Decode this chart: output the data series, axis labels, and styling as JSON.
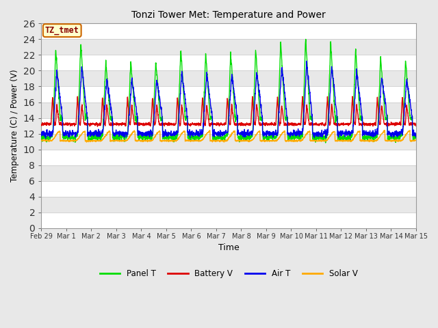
{
  "title": "Tonzi Tower Met: Temperature and Power",
  "xlabel": "Time",
  "ylabel": "Temperature (C) / Power (V)",
  "ylim": [
    0,
    26
  ],
  "annotation": "TZ_tmet",
  "x_tick_labels": [
    "Feb 29",
    "Mar 1",
    "Mar 2",
    "Mar 3",
    "Mar 4",
    "Mar 5",
    "Mar 6",
    "Mar 7",
    "Mar 8",
    "Mar 9",
    "Mar 10",
    "Mar 11",
    "Mar 12",
    "Mar 13",
    "Mar 14",
    "Mar 15"
  ],
  "legend_labels": [
    "Panel T",
    "Battery V",
    "Air T",
    "Solar V"
  ],
  "line_colors": [
    "#00dd00",
    "#dd0000",
    "#0000ee",
    "#ffaa00"
  ],
  "background_color": "#e8e8e8",
  "plot_bg_color": "#e8e8e8",
  "grid_line_color": "#cccccc",
  "n_days": 15,
  "pts_per_day": 144
}
